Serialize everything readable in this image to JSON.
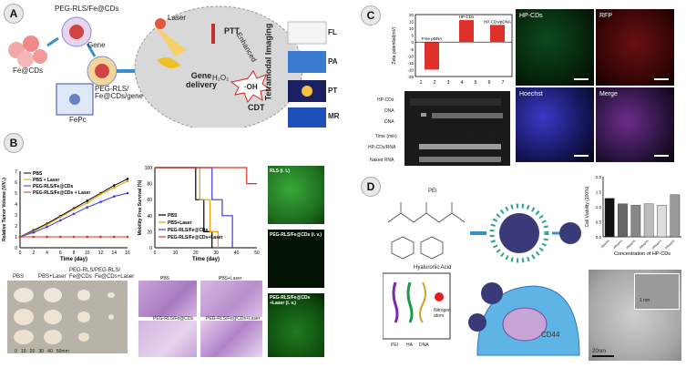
{
  "panel_labels": {
    "a": "A",
    "b": "B",
    "c": "C",
    "d": "D"
  },
  "panel_a": {
    "labels": {
      "peg_rls_fe_cds": "PEG-RLS/Fe@CDs",
      "gene": "Gene",
      "fe_cds": "Fe@CDs",
      "peg_rls_fe_cds_gene": "PEG-RLS/\nFe@CDs/gene",
      "fepc": "FePc",
      "laser": "Laser",
      "ptt": "PTT",
      "enhanced": "Enhanced",
      "gene_delivery": "Gene\ndelivery",
      "h2o2": "H₂O₂",
      "oh": "·OH",
      "cdt": "CDT",
      "tetramodal": "Tetramodal Imaging",
      "fl": "FL",
      "pa": "PA",
      "pt": "PT",
      "mr": "MR"
    }
  },
  "panel_b": {
    "tumor_chart": {
      "ylabel": "Relative Tumor Volume (V/V₀)",
      "xlabel": "Time (day)",
      "xticks": [
        "0",
        "2",
        "4",
        "6",
        "8",
        "10",
        "12",
        "14",
        "16"
      ],
      "yticks": [
        "0",
        "1",
        "2",
        "3",
        "4",
        "5",
        "6",
        "7"
      ],
      "legend": [
        "PBS",
        "PBS + Laser",
        "PEG-RLS/Fe@CDs",
        "PEG-RLS/Fe@CDs + Laser"
      ],
      "colors": [
        "#000000",
        "#e6a100",
        "#3a3adb",
        "#e03020"
      ]
    },
    "survival_chart": {
      "ylabel": "Mobility Free Survival (%)",
      "xlabel": "Time (day)",
      "xticks": [
        "0",
        "10",
        "20",
        "30",
        "40",
        "50"
      ],
      "yticks": [
        "0",
        "20",
        "40",
        "60",
        "80",
        "100"
      ],
      "legend": [
        "PBS",
        "PBS+Laser",
        "PEG-RLS/Fe@CDs",
        "PEG-RLS/Fe@CDs+Laser"
      ],
      "colors": [
        "#000000",
        "#e6a100",
        "#3a3adb",
        "#e03020"
      ]
    },
    "tumor_photo_labels": [
      "PBS",
      "PBS+Laser",
      "PEG-RLS/\nFe@CDs",
      "PEG-RLS/\nFe@CDs+Laser"
    ],
    "ruler": "0   10   20   30   40   50mm",
    "histo_labels": [
      "PBS",
      "PBS+Laser",
      "PEG-RLS/Fe@CDs",
      "PEG-RLS/Fe@CDs+Laser"
    ],
    "fluor_labels": [
      "RLS (i. t.)",
      "PEG-RLS/Fe@CDs (i. v.)",
      "PEG-RLS/Fe@CDs\n+Laser (i. v.)"
    ]
  },
  "panel_c": {
    "zeta_chart": {
      "ylabel": "Zeta potential(mV)",
      "yticks": [
        "20",
        "15",
        "10",
        "5",
        "0",
        "-5",
        "-10",
        "-15",
        "-20",
        "-25"
      ],
      "bars": [
        {
          "label": "Free pDNA",
          "value": -20
        },
        {
          "label": "HP-CDs",
          "value": 16
        },
        {
          "label": "HP-CDs/pDNA",
          "value": 12.5
        }
      ]
    },
    "gel": {
      "lanes": [
        "1",
        "2",
        "3",
        "4",
        "5",
        "6",
        "7"
      ],
      "row_labels": [
        "HP-CDs",
        "DNA",
        "DNA",
        "Time (min)",
        "HP-CDs/RNA",
        "Naked RNA"
      ],
      "times": [
        "0",
        "20",
        "40",
        "60"
      ]
    },
    "micro_labels": [
      "HP-CDs",
      "RFP",
      "Hoechst",
      "Merge"
    ]
  },
  "panel_d": {
    "labels": {
      "pei": "PEI",
      "hyaluronic_acid": "Hyaluronic Acid",
      "legend_pei": "PEI",
      "legend_ha": "HA",
      "legend_dna": "DNA",
      "legend_n": "Nitrogen\natom",
      "cd44": "CD44",
      "scale": "20nm",
      "inset_scale": "1 nm"
    },
    "viability_chart": {
      "ylabel": "Cell Viability (100%)",
      "xlabel": "Concentration of HP-CDs",
      "categories": [
        "50μg/mL",
        "100μg/mL",
        "200μg/mL",
        "300μg/mL",
        "400μg/mL",
        "500μg/mL"
      ],
      "values": [
        1.28,
        1.1,
        1.05,
        1.1,
        1.05,
        1.4
      ],
      "yticks": [
        "0.0",
        "0.5",
        "1.0",
        "1.5",
        "2.0"
      ],
      "ylim": [
        0,
        2
      ]
    }
  }
}
